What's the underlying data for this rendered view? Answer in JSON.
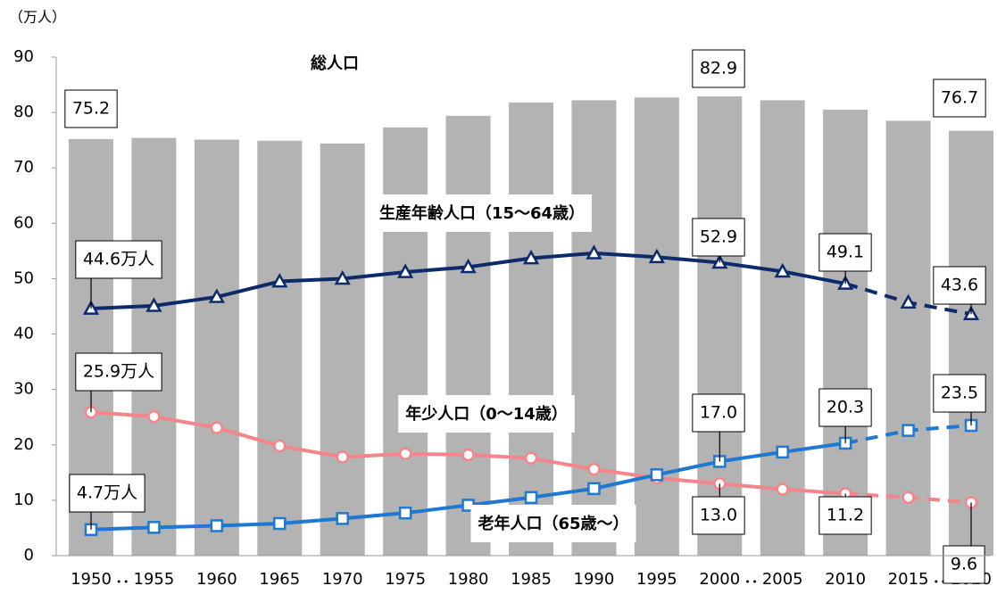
{
  "chart_data": {
    "type": "combo",
    "unit_label": "（万人）",
    "categories": [
      "1950",
      "1955",
      "1960",
      "1965",
      "1970",
      "1975",
      "1980",
      "1985",
      "1990",
      "1995",
      "2000",
      "2005",
      "2010",
      "2015",
      "2020"
    ],
    "ylim": [
      0,
      90
    ],
    "yticks": [
      0,
      10,
      20,
      30,
      40,
      50,
      60,
      70,
      80,
      90
    ],
    "grid": false,
    "projection_from": 12,
    "series": [
      {
        "name": "総人口",
        "type": "bar",
        "color": "#b3b3b3",
        "values": [
          75.2,
          75.4,
          75.1,
          74.9,
          74.4,
          77.3,
          79.4,
          81.8,
          82.2,
          82.7,
          82.9,
          82.2,
          80.5,
          78.5,
          76.7
        ],
        "value_labels": [
          "75.2",
          null,
          null,
          null,
          null,
          null,
          null,
          null,
          null,
          null,
          "82.9",
          null,
          null,
          null,
          "76.7"
        ]
      },
      {
        "name": "生産年齢人口（15～64歳）",
        "type": "line",
        "marker": "triangle",
        "color": "#0d2a6b",
        "values": [
          44.6,
          45.1,
          46.7,
          49.5,
          50.0,
          51.2,
          52.1,
          53.7,
          54.6,
          53.9,
          52.9,
          51.3,
          49.1,
          45.7,
          43.6
        ],
        "value_labels": [
          "44.6万人",
          null,
          null,
          null,
          null,
          null,
          null,
          null,
          null,
          null,
          "52.9",
          null,
          "49.1",
          null,
          "43.6"
        ]
      },
      {
        "name": "年少人口（0～14歳）",
        "type": "line",
        "marker": "circle",
        "color": "#f4858a",
        "values": [
          25.9,
          25.1,
          23.1,
          19.8,
          17.8,
          18.4,
          18.2,
          17.6,
          15.6,
          14.0,
          13.0,
          12.0,
          11.2,
          10.5,
          9.6
        ],
        "value_labels": [
          "25.9万人",
          null,
          null,
          null,
          null,
          null,
          null,
          null,
          null,
          null,
          "13.0",
          null,
          "11.2",
          null,
          "9.6"
        ]
      },
      {
        "name": "老年人口（65歳～）",
        "type": "line",
        "marker": "square",
        "color": "#1f78d1",
        "values": [
          4.7,
          5.1,
          5.4,
          5.8,
          6.7,
          7.7,
          9.1,
          10.5,
          12.1,
          14.6,
          17.0,
          18.7,
          20.3,
          22.6,
          23.5
        ],
        "value_labels": [
          "4.7万人",
          null,
          null,
          null,
          null,
          null,
          null,
          null,
          null,
          null,
          "17.0",
          null,
          "20.3",
          null,
          "23.5"
        ]
      }
    ]
  }
}
